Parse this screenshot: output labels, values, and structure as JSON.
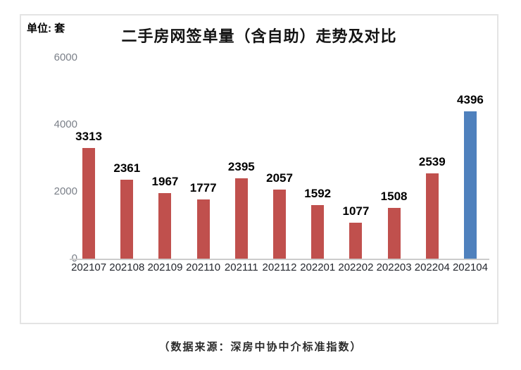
{
  "unit_label": "单位: 套",
  "caption": "（数据来源：深房中协中介标准指数）",
  "colors": {
    "bar_default": "#c0504d",
    "bar_highlight": "#4f81bd",
    "box_border": "#e4e4e4",
    "axis_line": "#cccccc",
    "ytick_text": "#7b8089",
    "xtick_text": "#24272e",
    "title_text": "#141414"
  },
  "chart_data": {
    "type": "bar",
    "title": "二手房网签单量（含自助）走势及对比",
    "ylabel": "单位: 套",
    "xlabel": "",
    "categories": [
      "202107",
      "202108",
      "202109",
      "202110",
      "202111",
      "202112",
      "202201",
      "202202",
      "202203",
      "202204",
      "202104"
    ],
    "values": [
      3313,
      2361,
      1967,
      1777,
      2395,
      2057,
      1592,
      1077,
      1508,
      2539,
      4396
    ],
    "highlight_index": 10,
    "ylim": [
      0,
      6000
    ],
    "yticks": [
      0,
      2000,
      4000,
      6000
    ],
    "grid": false,
    "legend_position": "none",
    "data_labels": true
  }
}
